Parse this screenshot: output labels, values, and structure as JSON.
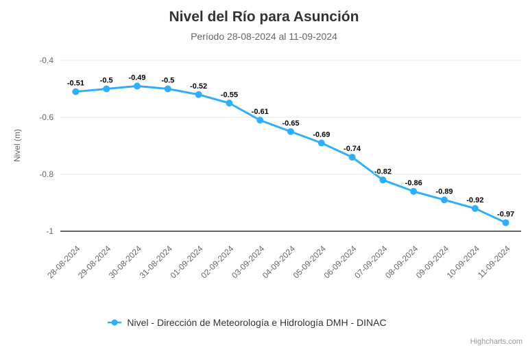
{
  "chart_data": {
    "type": "line",
    "title": "Nivel del Río para Asunción",
    "subtitle": "Período 28-08-2024 al 11-09-2024",
    "xlabel": "",
    "ylabel": "Nivel (m)",
    "categories": [
      "28-08-2024",
      "29-08-2024",
      "30-08-2024",
      "31-08-2024",
      "01-09-2024",
      "02-09-2024",
      "03-09-2024",
      "04-09-2024",
      "05-09-2024",
      "06-09-2024",
      "07-09-2024",
      "08-09-2024",
      "09-09-2024",
      "10-09-2024",
      "11-09-2024"
    ],
    "series": [
      {
        "name": "Nivel - Dirección de Meteorología e Hidrología DMH - DINAC",
        "color": "#2caffe",
        "values": [
          -0.51,
          -0.5,
          -0.49,
          -0.5,
          -0.52,
          -0.55,
          -0.61,
          -0.65,
          -0.69,
          -0.74,
          -0.82,
          -0.86,
          -0.89,
          -0.92,
          -0.97
        ]
      }
    ],
    "ylim": [
      -1,
      -0.4
    ],
    "yticks": [
      -0.4,
      -0.6,
      -0.8,
      -1
    ],
    "grid": true,
    "data_labels": true,
    "legend_position": "bottom",
    "x_label_rotation": -45
  },
  "credits": {
    "label": "Highcharts.com"
  },
  "colors": {
    "title": "#333333",
    "subtitle": "#666666",
    "axis_label": "#666666",
    "grid_line": "#e6e6e6",
    "axis_line": "#333333",
    "series": "#2caffe",
    "data_label": "#000000",
    "legend_text": "#333333",
    "credits": "#999999",
    "background": "#ffffff"
  }
}
